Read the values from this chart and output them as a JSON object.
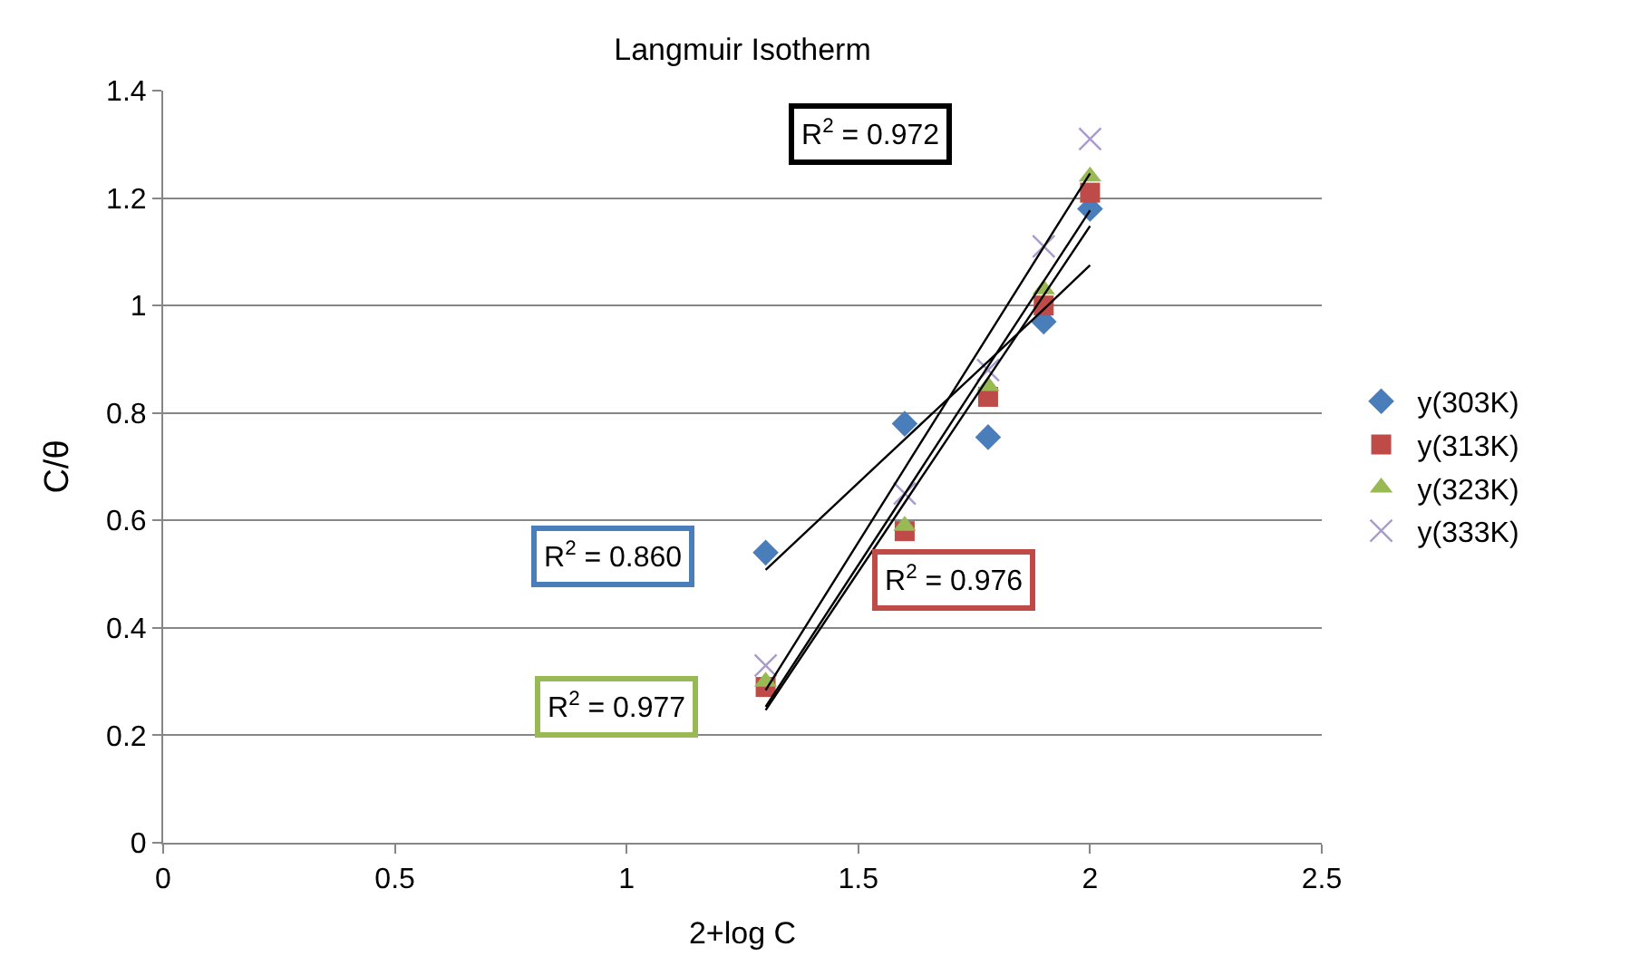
{
  "chart_data": {
    "type": "scatter",
    "title": "Langmuir Isotherm",
    "xlabel": "2+log C",
    "ylabel": "C/θ",
    "x": [
      1.3,
      1.6,
      1.78,
      1.9,
      2.0
    ],
    "series": [
      {
        "name": "y(303K)",
        "color": "#4a7ebb",
        "marker": "diamond",
        "values": [
          0.54,
          0.78,
          0.755,
          0.97,
          1.18
        ]
      },
      {
        "name": "y(313K)",
        "color": "#be4b48",
        "marker": "square",
        "values": [
          0.29,
          0.58,
          0.83,
          1.0,
          1.21
        ]
      },
      {
        "name": "y(323K)",
        "color": "#98b954",
        "marker": "triangle",
        "values": [
          0.3,
          0.59,
          0.85,
          1.03,
          1.24
        ]
      },
      {
        "name": "y(333K)",
        "color": "#a99bce",
        "marker": "cross",
        "values": [
          0.33,
          0.65,
          0.88,
          1.11,
          1.31
        ]
      },
      {
        "type": "line",
        "color": "#000000",
        "values": [
          0.508,
          0.751,
          0.896,
          0.993,
          1.075
        ]
      },
      {
        "type": "line",
        "color": "#000000",
        "values": [
          0.247,
          0.633,
          0.865,
          1.019,
          1.148
        ]
      },
      {
        "type": "line",
        "color": "#000000",
        "values": [
          0.253,
          0.649,
          0.887,
          1.045,
          1.177
        ]
      },
      {
        "type": "line",
        "color": "#000000",
        "values": [
          0.284,
          0.697,
          0.944,
          1.109,
          1.246
        ]
      }
    ],
    "annotations": [
      "R$^{2}$ = 0.860",
      "R$^{2}$ = 0.976",
      "R$^{2}$ = 0.977",
      "R$^{2}$ = 0.972"
    ],
    "xlim": [
      0,
      2.5
    ],
    "xticks": [
      0,
      0.5,
      1,
      1.5,
      2,
      2.5
    ],
    "ylim": [
      0,
      1.4
    ],
    "yticks": [
      0,
      0.2,
      0.4,
      0.6,
      0.8,
      1,
      1.2,
      1.4
    ],
    "grid": "y",
    "legend": "right"
  }
}
